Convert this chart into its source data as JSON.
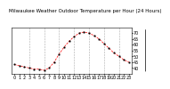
{
  "title": "Milwaukee Weather Outdoor Temperature per Hour (24 Hours)",
  "hours": [
    0,
    1,
    2,
    3,
    4,
    5,
    6,
    7,
    8,
    9,
    10,
    11,
    12,
    13,
    14,
    15,
    16,
    17,
    18,
    19,
    20,
    21,
    22,
    23
  ],
  "temperatures": [
    43,
    42,
    41,
    40,
    39,
    39,
    38,
    40,
    45,
    52,
    58,
    63,
    67,
    70,
    71,
    70,
    68,
    65,
    61,
    57,
    53,
    50,
    47,
    45
  ],
  "line_color": "#ff0000",
  "marker_color": "#000000",
  "background_color": "#ffffff",
  "grid_color": "#aaaaaa",
  "ylim": [
    35,
    75
  ],
  "yticks": [
    40,
    45,
    50,
    55,
    60,
    65,
    70
  ],
  "xtick_positions": [
    0,
    1,
    2,
    3,
    4,
    5,
    6,
    7,
    8,
    9,
    10,
    11,
    12,
    13,
    14,
    15,
    16,
    17,
    18,
    19,
    20,
    21,
    22,
    23
  ],
  "vgrid_positions": [
    3,
    6,
    9,
    12,
    15,
    18,
    21
  ],
  "title_fontsize": 4.0,
  "tick_fontsize": 3.5
}
